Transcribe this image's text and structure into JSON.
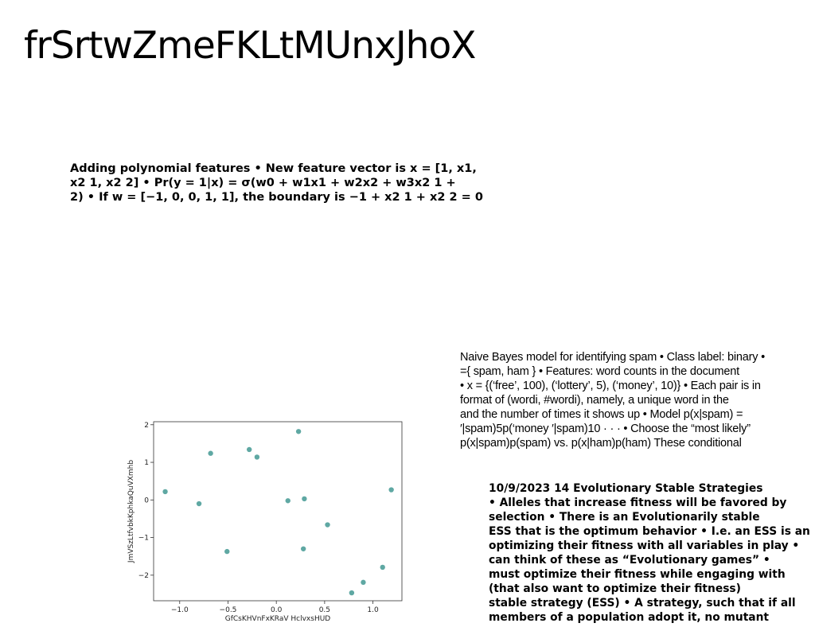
{
  "slide_title": "frSrtwZmeFKLtMUnxJhoX",
  "block1_lines": [
    "Adding polynomial features • New feature vector is x = [1, x1,",
    "x2 1, x2 2] • Pr(y = 1|x) = σ(w0 + w1x1 + w2x2 + w3x2 1 +",
    "2) • If w = [−1, 0, 0, 1, 1], the boundary is −1 + x2 1 + x2 2 = 0"
  ],
  "block2_lines": [
    "Naive Bayes model for identifying spam • Class label: binary •",
    "={ spam, ham } • Features: word counts in the document",
    "• x = {(‘free’, 100), (‘lottery’, 5), (‘money’, 10)} • Each pair is in",
    "format of (wordi, #wordi), namely, a unique word in the",
    "and the number of times it shows up • Model p(x|spam) =",
    "′|spam)5p(‘money ′|spam)10 · · · • Choose the “most likely”",
    "p(x|spam)p(spam) vs. p(x|ham)p(ham) These conditional"
  ],
  "block3_lines": [
    "10/9/2023 14 Evolutionary Stable Strategies",
    "• Alleles that increase fitness will be favored by",
    "selection • There is an Evolutionarily stable",
    "ESS that is the optimum behavior • I.e. an ESS is an",
    "optimizing their fitness with all variables in play •",
    "can think of these as “Evolutionary games” •",
    "must optimize their fitness while engaging with",
    "(that also want to optimize their fitness)",
    "stable strategy (ESS) • A strategy, such that if all",
    "members of a population adopt it, no mutant"
  ],
  "chart_data": {
    "type": "scatter",
    "title": "",
    "xlabel": "GfCsKHVnFxKRaV HclvxsHUD",
    "ylabel": "JmVSzLtfvbkKphkaQuVXmhb",
    "xlim": [
      -1.27,
      1.3
    ],
    "ylim": [
      -2.68,
      2.08
    ],
    "xticks": [
      -1.0,
      -0.5,
      0.0,
      0.5,
      1.0
    ],
    "xtick_labels": [
      "−1.0",
      "−0.5",
      "0.0",
      "0.5",
      "1.0"
    ],
    "yticks": [
      -2,
      -1,
      0,
      1,
      2
    ],
    "ytick_labels": [
      "−2",
      "−1",
      "0",
      "1",
      "2"
    ],
    "grid": false,
    "marker_color": "#5fa8a3",
    "x": [
      -1.15,
      -0.8,
      -0.68,
      -0.51,
      -0.28,
      -0.2,
      0.12,
      0.23,
      0.28,
      0.29,
      0.53,
      0.78,
      0.9,
      1.1,
      1.19
    ],
    "y": [
      0.22,
      -0.1,
      1.24,
      -1.37,
      1.34,
      1.14,
      -0.02,
      1.82,
      -1.3,
      0.03,
      -0.66,
      -2.47,
      -2.19,
      -1.79,
      0.27
    ]
  }
}
